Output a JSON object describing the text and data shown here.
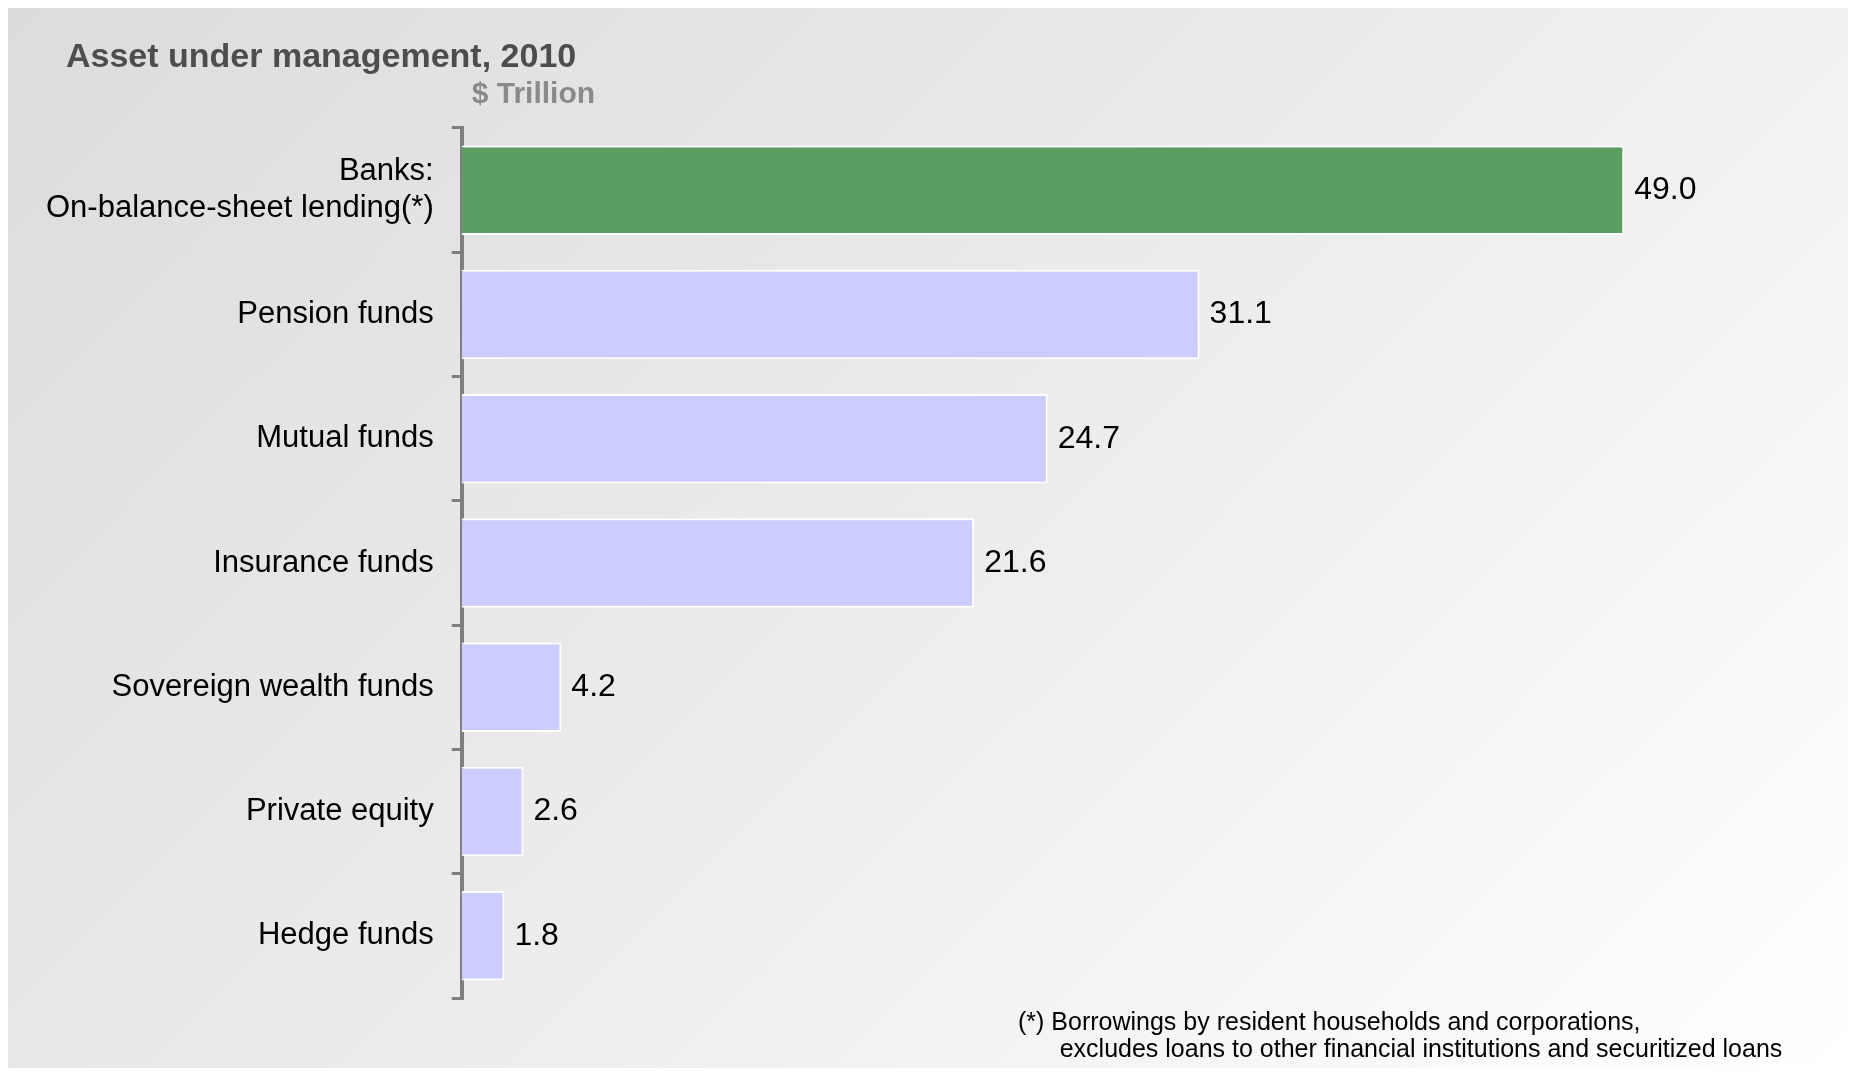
{
  "chart_data": {
    "type": "bar",
    "orientation": "horizontal",
    "title": "Asset under management, 2010",
    "xlabel": "$ Trillion",
    "categories": [
      "Banks:\nOn-balance-sheet lending(*)",
      "Pension funds",
      "Mutual funds",
      "Insurance funds",
      "Sovereign wealth funds",
      "Private equity",
      "Hedge funds"
    ],
    "values": [
      49.0,
      31.1,
      24.7,
      21.6,
      4.2,
      2.6,
      1.8
    ],
    "colors": [
      "#5a9e62",
      "#ccccff",
      "#ccccff",
      "#ccccff",
      "#ccccff",
      "#ccccff",
      "#ccccff"
    ],
    "value_labels": [
      "49.0",
      "31.1",
      "24.7",
      "21.6",
      "4.2",
      "2.6",
      "1.8"
    ],
    "grid": false,
    "legend": false,
    "annotations": [
      "(*) Borrowings by resident households and corporations,\n      excludes loans to other financial institutions and securitized loans"
    ]
  }
}
